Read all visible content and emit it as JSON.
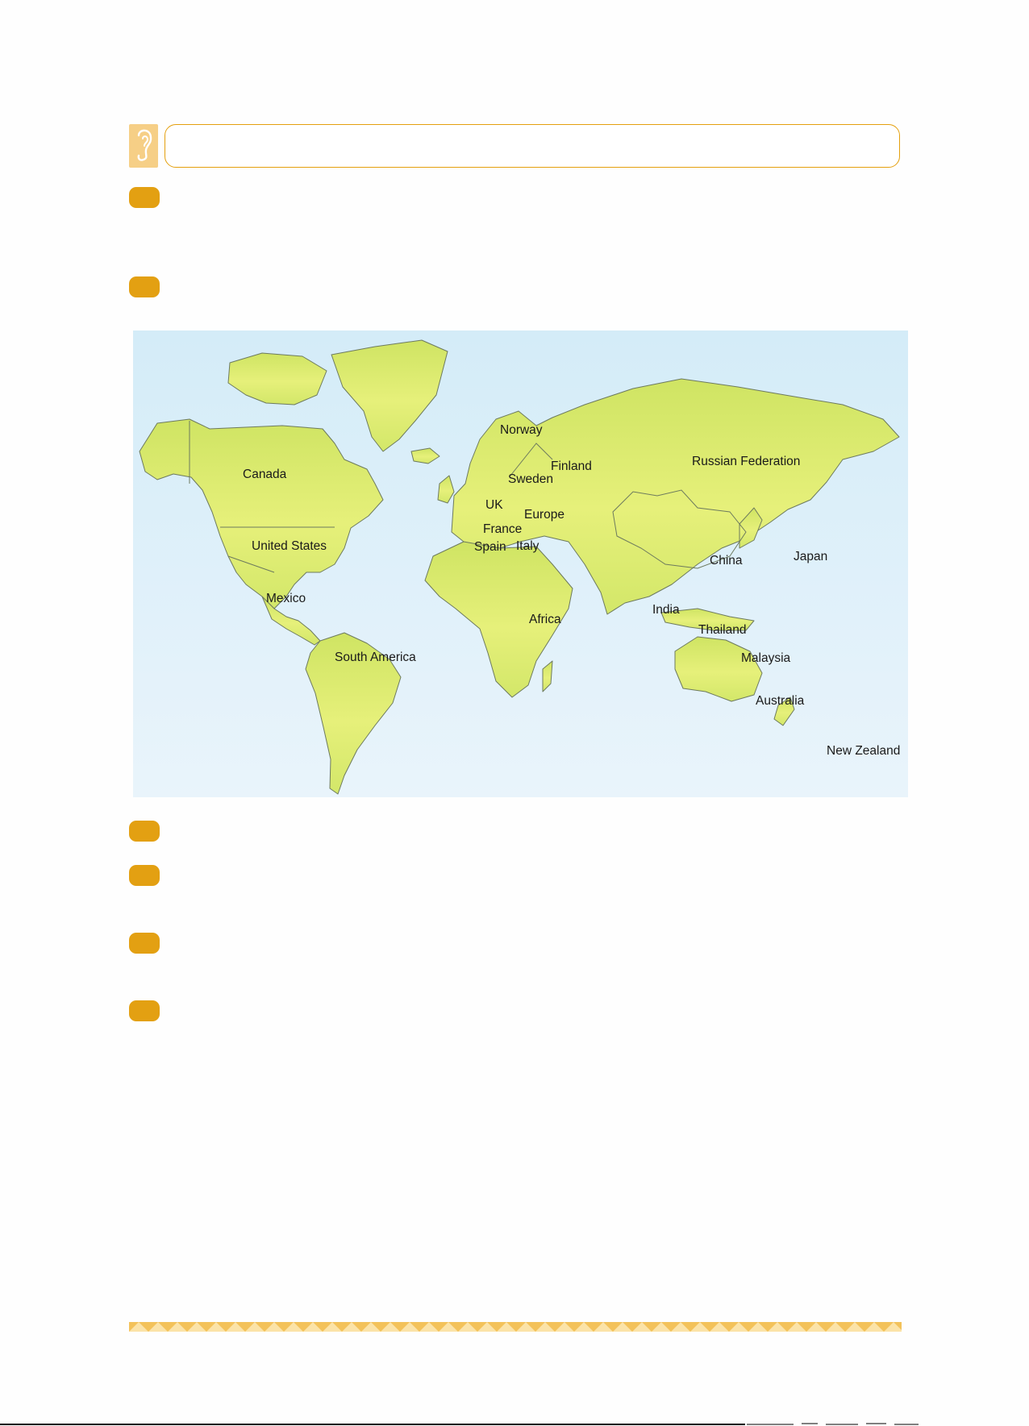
{
  "header": {
    "icon": "ear-icon"
  },
  "bullets": {
    "count": 7
  },
  "map": {
    "colors": {
      "ocean_top": "#d4ecf8",
      "ocean_bottom": "#e9f4fb",
      "land": "#d9ea6a",
      "land_light": "#eaf27a",
      "border": "#6d7a5e"
    },
    "labels": {
      "norway": "Norway",
      "finland": "Finland",
      "russia": "Russian Federation",
      "canada": "Canada",
      "sweden": "Sweden",
      "uk": "UK",
      "europe": "Europe",
      "france": "France",
      "spain": "Spain",
      "italy": "Italy",
      "us": "United States",
      "china": "China",
      "japan": "Japan",
      "mexico": "Mexico",
      "india": "India",
      "africa": "Africa",
      "thailand": "Thailand",
      "south_america": "South America",
      "malaysia": "Malaysia",
      "australia": "Australia",
      "new_zealand": "New Zealand"
    }
  },
  "footer": {
    "colors": {
      "band": "#f3c25a",
      "band_light": "#fbe3a8"
    }
  }
}
